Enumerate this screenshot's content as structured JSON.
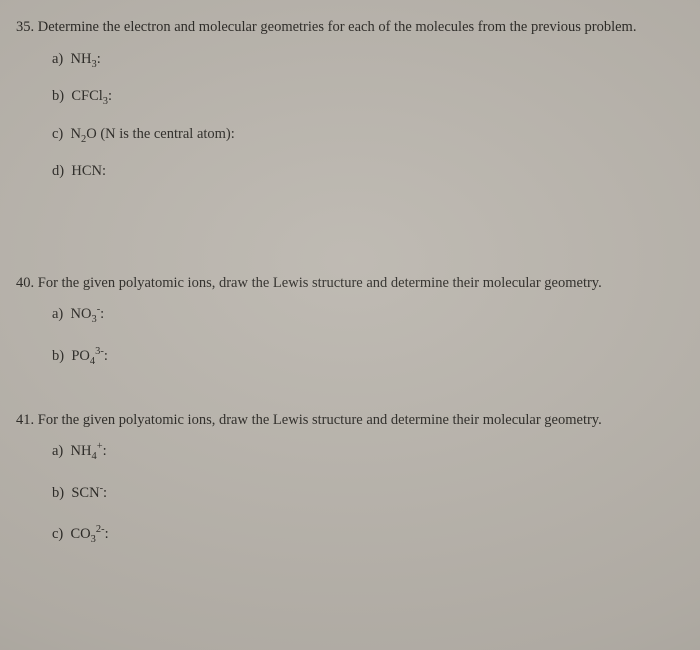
{
  "page": {
    "background_color": "#bab5ad",
    "text_color": "#2a2824",
    "font_family": "Georgia, serif",
    "base_fontsize_pt": 11
  },
  "q35": {
    "number": "35.",
    "stem": "Determine the electron and molecular geometries for each of the molecules from the previous problem.",
    "items": {
      "a": {
        "letter": "a)",
        "label_html": "NH<sub>3</sub>:"
      },
      "b": {
        "letter": "b)",
        "label_html": "CFCl<sub>3</sub>:"
      },
      "c": {
        "letter": "c)",
        "label_html": "N<sub>2</sub>O (N is the central atom):"
      },
      "d": {
        "letter": "d)",
        "label_html": "HCN:"
      }
    }
  },
  "q40": {
    "number": "40.",
    "stem": "For the given polyatomic ions, draw the Lewis structure and determine their molecular geometry.",
    "items": {
      "a": {
        "letter": "a)",
        "label_html": "NO<sub>3</sub><sup>-</sup>:"
      },
      "b": {
        "letter": "b)",
        "label_html": "PO<sub>4</sub><sup>3-</sup>:"
      }
    }
  },
  "q41": {
    "number": "41.",
    "stem": "For the given polyatomic ions, draw the Lewis structure and determine their molecular geometry.",
    "items": {
      "a": {
        "letter": "a)",
        "label_html": "NH<sub>4</sub><sup>+</sup>:"
      },
      "b": {
        "letter": "b)",
        "label_html": "SCN<sup>-</sup>:"
      },
      "c": {
        "letter": "c)",
        "label_html": "CO<sub>3</sub><sup>2-</sup>:"
      }
    }
  }
}
